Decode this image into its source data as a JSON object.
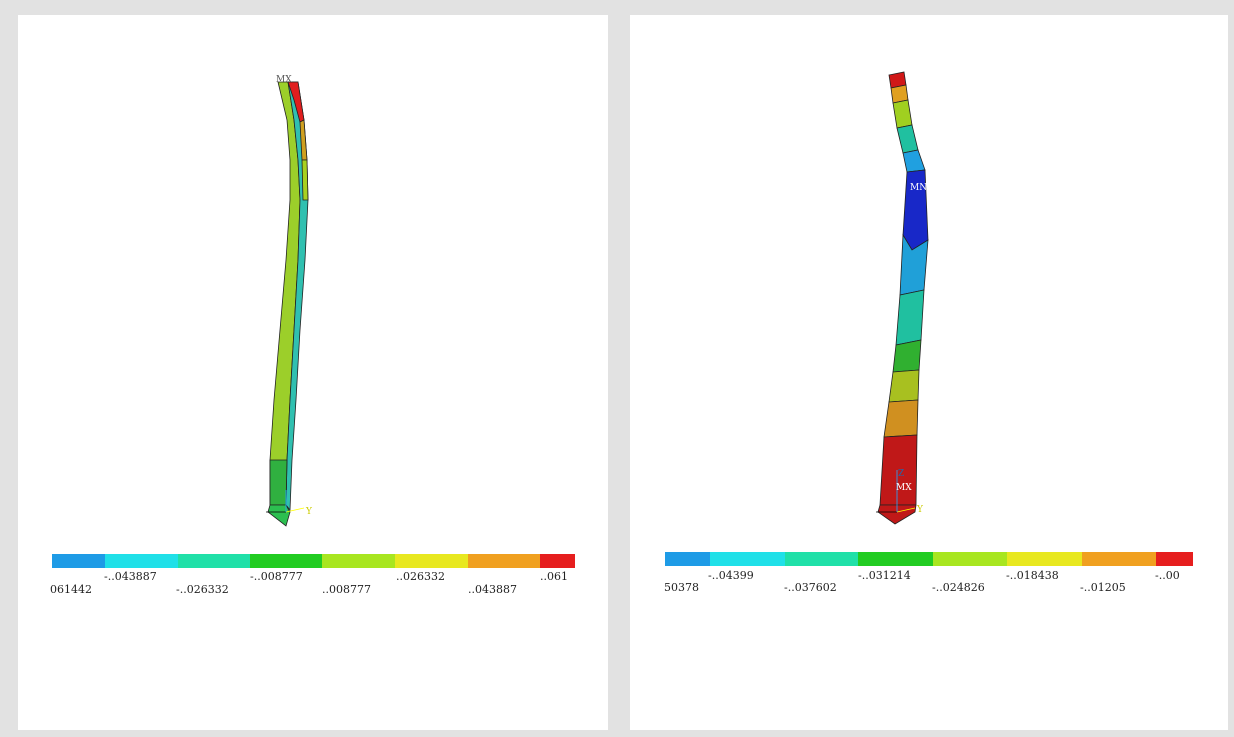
{
  "panels": [
    {
      "markers": [
        "MX",
        "Y"
      ],
      "legend_colors": [
        "#1e9be6",
        "#20e0e8",
        "#20e0a8",
        "#22cc22",
        "#a8e620",
        "#e8e820",
        "#f0a020",
        "#e61e1e"
      ],
      "labels_top": [
        "-..043887",
        "-..008777",
        "..026332",
        "..061"
      ],
      "labels_bottom": [
        "061442",
        "-..026332",
        "..008777",
        "..043887"
      ]
    },
    {
      "markers": [
        "MN",
        "Z",
        "MX",
        "Y"
      ],
      "legend_colors": [
        "#1e9be6",
        "#20e0e8",
        "#20e0a8",
        "#22cc22",
        "#a8e620",
        "#e8e820",
        "#f0a020",
        "#e61e1e"
      ],
      "labels_top": [
        "-..04399",
        "-..031214",
        "-..018438",
        "-..00"
      ],
      "labels_bottom": [
        "50378",
        "-..037602",
        "-..024826",
        "-..01205"
      ]
    }
  ]
}
